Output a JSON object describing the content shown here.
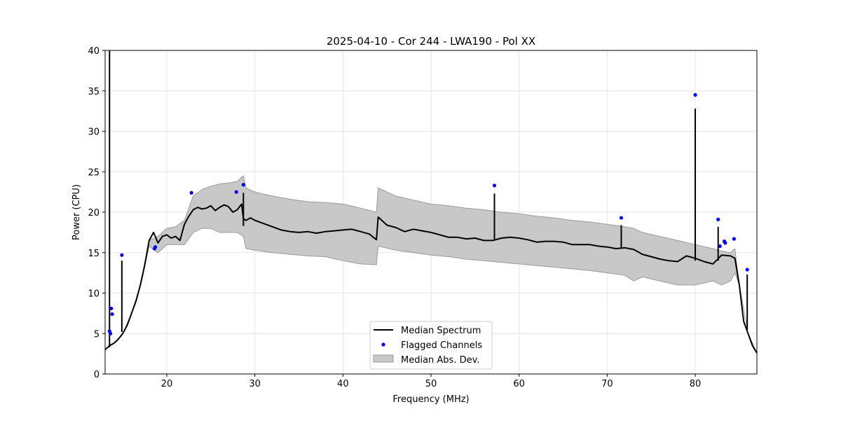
{
  "chart_data": {
    "type": "line",
    "title": "2025-04-10 - Cor 244 - LWA190 - Pol XX",
    "xlabel": "Frequency (MHz)",
    "ylabel": "Power (CPU)",
    "xlim": [
      13.0,
      87.0
    ],
    "ylim": [
      0,
      40
    ],
    "xticks": [
      20,
      30,
      40,
      50,
      60,
      70,
      80
    ],
    "yticks": [
      0,
      5,
      10,
      15,
      20,
      25,
      30,
      35,
      40
    ],
    "xtick_labels": [
      "20",
      "30",
      "40",
      "50",
      "60",
      "70",
      "80"
    ],
    "ytick_labels": [
      "0",
      "5",
      "10",
      "15",
      "20",
      "25",
      "30",
      "35",
      "40"
    ],
    "grid": true,
    "legend_position": "lower-center",
    "legend": {
      "median": "Median Spectrum",
      "flagged": "Flagged Channels",
      "mad": "Median Abs. Dev."
    },
    "colors": {
      "median": "#000000",
      "flagged": "#0000ff",
      "mad_fill": "#c8c8c8",
      "mad_edge": "#9a9a9a",
      "grid": "#e6e6e6"
    },
    "series": [
      {
        "name": "Median Spectrum",
        "x": [
          13.0,
          13.5,
          14.0,
          14.5,
          15.0,
          15.5,
          16.0,
          16.5,
          17.0,
          17.5,
          18.0,
          18.5,
          19.0,
          19.5,
          20.0,
          20.5,
          21.0,
          21.5,
          22.0,
          22.5,
          23.0,
          23.5,
          24.0,
          24.5,
          25.0,
          25.5,
          26.0,
          26.5,
          27.0,
          27.5,
          28.0,
          28.5,
          28.7,
          29.0,
          29.5,
          30.0,
          31.0,
          32.0,
          33.0,
          34.0,
          35.0,
          36.0,
          37.0,
          38.0,
          39.0,
          40.0,
          41.0,
          42.0,
          43.0,
          43.8,
          44.0,
          45.0,
          46.0,
          47.0,
          48.0,
          49.0,
          50.0,
          51.0,
          52.0,
          53.0,
          54.0,
          55.0,
          56.0,
          57.0,
          58.0,
          59.0,
          60.0,
          61.0,
          62.0,
          63.0,
          64.0,
          65.0,
          66.0,
          67.0,
          68.0,
          69.0,
          70.0,
          71.0,
          72.0,
          73.0,
          74.0,
          75.0,
          76.0,
          77.0,
          78.0,
          79.0,
          80.0,
          81.0,
          82.0,
          83.0,
          84.0,
          84.5,
          85.0,
          85.5,
          86.0,
          86.5,
          87.0
        ],
        "values": [
          3.0,
          3.5,
          3.8,
          4.3,
          5.0,
          6.0,
          7.5,
          9.0,
          11.0,
          13.5,
          16.5,
          17.5,
          16.2,
          17.0,
          17.2,
          16.8,
          17.0,
          16.5,
          18.5,
          19.5,
          20.3,
          20.6,
          20.4,
          20.5,
          20.8,
          20.2,
          20.6,
          20.9,
          20.7,
          20.0,
          20.3,
          21.0,
          19.2,
          19.0,
          19.3,
          19.0,
          18.6,
          18.2,
          17.8,
          17.6,
          17.5,
          17.6,
          17.4,
          17.6,
          17.7,
          17.8,
          17.9,
          17.6,
          17.3,
          16.6,
          19.4,
          18.4,
          18.1,
          17.6,
          17.9,
          17.7,
          17.5,
          17.2,
          16.9,
          16.9,
          16.7,
          16.8,
          16.5,
          16.5,
          16.8,
          16.9,
          16.8,
          16.6,
          16.3,
          16.4,
          16.4,
          16.3,
          16.0,
          16.0,
          16.0,
          15.8,
          15.7,
          15.5,
          15.6,
          15.4,
          14.8,
          14.5,
          14.2,
          14.0,
          13.9,
          14.6,
          14.3,
          13.9,
          13.6,
          14.7,
          14.6,
          14.3,
          11.0,
          6.5,
          5.0,
          3.5,
          2.6
        ]
      },
      {
        "name": "Median Abs. Dev.",
        "x": [
          13.0,
          14.0,
          15.0,
          16.0,
          17.0,
          18.0,
          19.0,
          20.0,
          21.0,
          22.0,
          23.0,
          24.0,
          25.0,
          26.0,
          27.0,
          28.0,
          28.7,
          29.0,
          30.0,
          32.0,
          34.0,
          36.0,
          38.0,
          40.0,
          42.0,
          43.8,
          44.0,
          46.0,
          48.0,
          50.0,
          52.0,
          54.0,
          56.0,
          58.0,
          60.0,
          62.0,
          64.0,
          66.0,
          68.0,
          70.0,
          72.0,
          73.0,
          74.0,
          76.0,
          78.0,
          80.0,
          82.0,
          83.0,
          84.0,
          84.5,
          85.0,
          86.0,
          87.0
        ],
        "upper": [
          3.0,
          3.8,
          5.0,
          7.5,
          11.0,
          16.5,
          17.0,
          18.0,
          18.2,
          19.0,
          22.0,
          22.8,
          23.2,
          23.5,
          23.6,
          23.8,
          24.5,
          23.0,
          22.5,
          22.0,
          21.6,
          21.3,
          21.2,
          21.0,
          20.5,
          20.0,
          23.0,
          22.0,
          21.5,
          21.0,
          20.8,
          20.5,
          20.3,
          20.0,
          19.8,
          19.5,
          19.3,
          19.0,
          18.8,
          18.5,
          18.2,
          18.0,
          17.5,
          17.0,
          16.5,
          16.0,
          15.5,
          15.2,
          15.0,
          15.5,
          11.0,
          5.0,
          2.6
        ],
        "lower": [
          3.0,
          3.8,
          5.0,
          7.5,
          11.0,
          15.8,
          15.0,
          16.0,
          16.0,
          16.0,
          17.5,
          18.0,
          18.0,
          17.5,
          17.5,
          17.5,
          17.0,
          15.5,
          15.3,
          15.0,
          14.8,
          14.6,
          14.5,
          14.0,
          13.6,
          13.5,
          15.8,
          15.3,
          15.0,
          14.7,
          14.5,
          14.2,
          14.0,
          13.8,
          13.6,
          13.4,
          13.2,
          13.0,
          12.8,
          12.5,
          12.2,
          11.5,
          12.0,
          11.5,
          11.0,
          11.0,
          11.5,
          11.0,
          11.5,
          12.5,
          11.0,
          5.0,
          2.6
        ]
      }
    ],
    "spikes": [
      {
        "x": 13.5,
        "base": 3.3,
        "top": 40.0
      },
      {
        "x": 14.9,
        "base": 5.2,
        "top": 14.0
      },
      {
        "x": 28.7,
        "base": 18.3,
        "top": 22.4
      },
      {
        "x": 57.2,
        "base": 16.5,
        "top": 22.3
      },
      {
        "x": 71.6,
        "base": 15.6,
        "top": 18.4
      },
      {
        "x": 80.0,
        "base": 14.0,
        "top": 32.8
      },
      {
        "x": 82.6,
        "base": 14.0,
        "top": 18.2
      },
      {
        "x": 85.9,
        "base": 5.5,
        "top": 12.3
      }
    ],
    "flagged_channels": {
      "x": [
        13.5,
        13.6,
        13.7,
        13.8,
        14.9,
        18.6,
        18.7,
        22.8,
        27.9,
        28.7,
        57.2,
        71.6,
        80.0,
        82.6,
        82.8,
        83.3,
        83.4,
        84.4,
        85.9
      ],
      "y": [
        5.3,
        5.0,
        8.1,
        7.4,
        14.7,
        15.5,
        15.7,
        22.4,
        22.5,
        23.4,
        23.3,
        19.3,
        34.5,
        19.1,
        15.8,
        16.4,
        16.2,
        16.7,
        12.9
      ]
    }
  }
}
